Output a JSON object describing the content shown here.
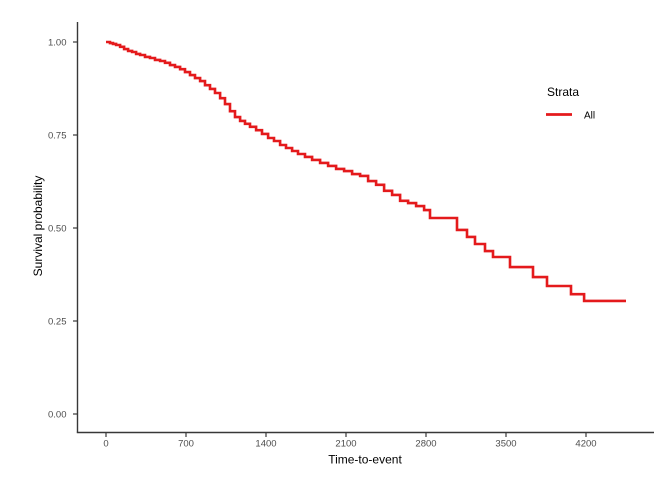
{
  "figure": {
    "background": "#ffffff"
  },
  "chart_data": {
    "type": "line",
    "subtype": "kaplan-meier-step",
    "title": "",
    "xlabel": "Time-to-event",
    "ylabel": "Survival probability",
    "grid": false,
    "xlim": [
      -254,
      4795
    ],
    "ylim": [
      -0.05,
      1.05
    ],
    "x_ticks": [
      {
        "value": 0,
        "label": "0"
      },
      {
        "value": 700,
        "label": "700"
      },
      {
        "value": 1400,
        "label": "1400"
      },
      {
        "value": 2100,
        "label": "2100"
      },
      {
        "value": 2800,
        "label": "2800"
      },
      {
        "value": 3500,
        "label": "3500"
      },
      {
        "value": 4200,
        "label": "4200"
      }
    ],
    "y_ticks": [
      {
        "value": 0.0,
        "label": "0.00"
      },
      {
        "value": 0.25,
        "label": "0.25"
      },
      {
        "value": 0.5,
        "label": "0.50"
      },
      {
        "value": 0.75,
        "label": "0.75"
      },
      {
        "value": 1.0,
        "label": "1.00"
      }
    ],
    "legend": {
      "position": "right",
      "title": "Strata",
      "items": [
        {
          "label": "All",
          "color": "#E41A1C"
        }
      ]
    },
    "colors": {
      "curve": "#E41A1C",
      "axis_line": "#383838",
      "tick_label": "#4d4d4d",
      "axis_title": "#000000",
      "background": "#ffffff"
    },
    "series": [
      {
        "name": "All",
        "color": "#E41A1C",
        "points": [
          [
            0,
            1.0
          ],
          [
            35,
            0.997
          ],
          [
            61,
            0.995
          ],
          [
            88,
            0.992
          ],
          [
            123,
            0.987
          ],
          [
            158,
            0.981
          ],
          [
            193,
            0.976
          ],
          [
            228,
            0.973
          ],
          [
            263,
            0.968
          ],
          [
            298,
            0.965
          ],
          [
            341,
            0.96
          ],
          [
            385,
            0.957
          ],
          [
            429,
            0.952
          ],
          [
            473,
            0.949
          ],
          [
            516,
            0.944
          ],
          [
            560,
            0.938
          ],
          [
            604,
            0.933
          ],
          [
            648,
            0.927
          ],
          [
            691,
            0.919
          ],
          [
            735,
            0.911
          ],
          [
            779,
            0.903
          ],
          [
            823,
            0.895
          ],
          [
            866,
            0.884
          ],
          [
            910,
            0.874
          ],
          [
            954,
            0.863
          ],
          [
            998,
            0.849
          ],
          [
            1041,
            0.833
          ],
          [
            1085,
            0.814
          ],
          [
            1129,
            0.798
          ],
          [
            1173,
            0.788
          ],
          [
            1216,
            0.78
          ],
          [
            1260,
            0.772
          ],
          [
            1313,
            0.763
          ],
          [
            1365,
            0.753
          ],
          [
            1418,
            0.742
          ],
          [
            1470,
            0.734
          ],
          [
            1523,
            0.723
          ],
          [
            1575,
            0.715
          ],
          [
            1628,
            0.707
          ],
          [
            1680,
            0.699
          ],
          [
            1741,
            0.691
          ],
          [
            1803,
            0.683
          ],
          [
            1873,
            0.675
          ],
          [
            1943,
            0.667
          ],
          [
            2013,
            0.659
          ],
          [
            2083,
            0.653
          ],
          [
            2153,
            0.645
          ],
          [
            2223,
            0.64
          ],
          [
            2293,
            0.626
          ],
          [
            2363,
            0.616
          ],
          [
            2433,
            0.6
          ],
          [
            2503,
            0.589
          ],
          [
            2573,
            0.573
          ],
          [
            2643,
            0.567
          ],
          [
            2713,
            0.559
          ],
          [
            2783,
            0.548
          ],
          [
            2835,
            0.527
          ],
          [
            3071,
            0.495
          ],
          [
            3159,
            0.476
          ],
          [
            3229,
            0.457
          ],
          [
            3316,
            0.438
          ],
          [
            3386,
            0.422
          ],
          [
            3535,
            0.395
          ],
          [
            3736,
            0.368
          ],
          [
            3859,
            0.344
          ],
          [
            4069,
            0.322
          ],
          [
            4183,
            0.304
          ],
          [
            4550,
            0.304
          ]
        ]
      }
    ]
  }
}
